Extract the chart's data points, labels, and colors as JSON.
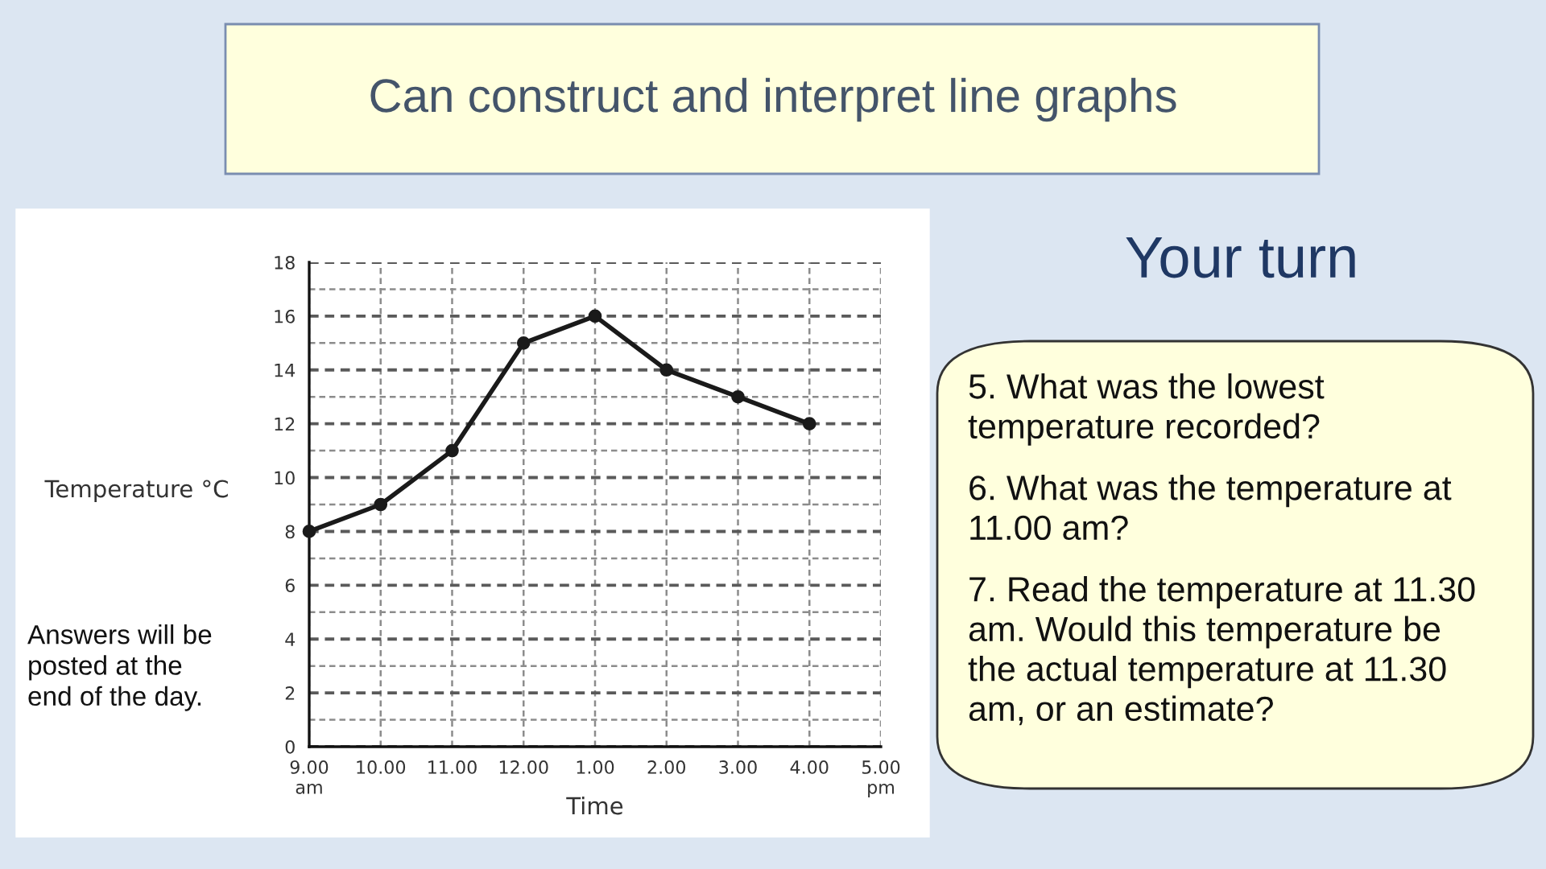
{
  "chart_data": {
    "type": "line",
    "title": "Can construct and interpret line graphs",
    "xlabel": "Time",
    "ylabel": "Temperature °C",
    "annotations": [
      "Your turn",
      "5. What was the lowest\ntemperature recorded?",
      "6. What was the temperature at\n11.00 am?",
      "7. Read the temperature at 11.30\nam. Would this temperature be\nthe actual temperature at 11.30\nam, or an estimate?",
      "Answers will be\nposted at the\nend of the day."
    ],
    "categories": [
      "9.00\nam",
      "10.00",
      "11.00",
      "12.00",
      "1.00",
      "2.00",
      "3.00",
      "4.00",
      "5.00\npm"
    ],
    "series": [
      {
        "color": "#1a1a1a",
        "values": [
          8,
          9,
          11,
          15,
          16,
          14,
          13,
          12,
          null
        ]
      }
    ],
    "ylim": [
      0,
      18
    ],
    "yticks": [
      0,
      {
        "value": 1,
        "label": null
      },
      2,
      {
        "value": 3,
        "label": null
      },
      4,
      {
        "value": 5,
        "label": null
      },
      6,
      {
        "value": 7,
        "label": null
      },
      8,
      {
        "value": 9,
        "label": null
      },
      10,
      {
        "value": 11,
        "label": null
      },
      12,
      {
        "value": 13,
        "label": null
      },
      14,
      {
        "value": 15,
        "label": null
      },
      16,
      {
        "value": 17,
        "label": null
      },
      18
    ],
    "grid": true,
    "marker": "circle",
    "line_style": "solid"
  }
}
